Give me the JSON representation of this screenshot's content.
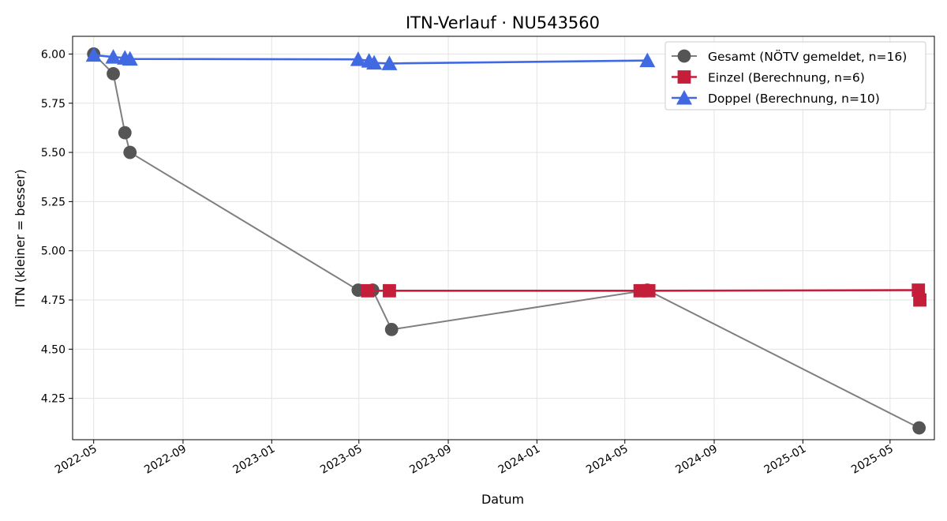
{
  "chart_data": {
    "type": "line",
    "title": "ITN-Verlauf · NU543560",
    "xlabel": "Datum",
    "ylabel": "ITN  (kleiner = besser)",
    "x_type": "date",
    "xlim": [
      "2022-04-02",
      "2025-07-01"
    ],
    "ylim": [
      4.04,
      6.09
    ],
    "grid": true,
    "legend_position": "top-right",
    "x_ticks": [
      "2022-05",
      "2022-09",
      "2023-01",
      "2023-05",
      "2023-09",
      "2024-01",
      "2024-05",
      "2024-09",
      "2025-01",
      "2025-05"
    ],
    "y_ticks": [
      "4.25",
      "4.50",
      "4.75",
      "5.00",
      "5.25",
      "5.50",
      "5.75",
      "6.00"
    ],
    "series": [
      {
        "name": "Gesamt (NÖTV gemeldet, n=16)",
        "color": "#555555",
        "line_color": "#7f7f7f",
        "marker": "circle",
        "points": [
          {
            "x": "2022-05-01",
            "y": 6.0
          },
          {
            "x": "2022-05-28",
            "y": 5.9
          },
          {
            "x": "2022-06-13",
            "y": 5.6
          },
          {
            "x": "2022-06-20",
            "y": 5.5
          },
          {
            "x": "2023-04-30",
            "y": 4.8
          },
          {
            "x": "2023-05-20",
            "y": 4.8
          },
          {
            "x": "2023-06-15",
            "y": 4.6
          },
          {
            "x": "2024-06-01",
            "y": 4.8
          },
          {
            "x": "2025-06-10",
            "y": 4.1
          }
        ]
      },
      {
        "name": "Einzel (Berechnung, n=6)",
        "color": "#c41e3a",
        "line_color": "#c41e3a",
        "marker": "square",
        "points": [
          {
            "x": "2023-05-13",
            "y": 4.797
          },
          {
            "x": "2023-06-12",
            "y": 4.797
          },
          {
            "x": "2024-05-22",
            "y": 4.797
          },
          {
            "x": "2024-06-03",
            "y": 4.797
          },
          {
            "x": "2025-06-09",
            "y": 4.8
          },
          {
            "x": "2025-06-11",
            "y": 4.75
          }
        ]
      },
      {
        "name": "Doppel (Berechnung, n=10)",
        "color": "#4169e1",
        "line_color": "#4169e1",
        "marker": "triangle",
        "points": [
          {
            "x": "2022-05-01",
            "y": 5.995
          },
          {
            "x": "2022-05-28",
            "y": 5.985
          },
          {
            "x": "2022-06-13",
            "y": 5.98
          },
          {
            "x": "2022-06-20",
            "y": 5.975
          },
          {
            "x": "2023-04-30",
            "y": 5.973
          },
          {
            "x": "2023-05-15",
            "y": 5.965
          },
          {
            "x": "2023-05-22",
            "y": 5.955
          },
          {
            "x": "2023-06-12",
            "y": 5.952
          },
          {
            "x": "2024-06-01",
            "y": 5.967
          }
        ]
      }
    ]
  }
}
